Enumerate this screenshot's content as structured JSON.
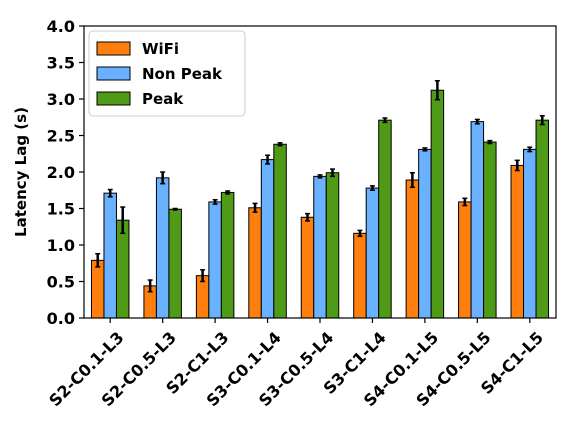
{
  "chart_data": {
    "type": "bar",
    "title": "",
    "xlabel": "",
    "ylabel": "Latency Lag (s)",
    "ylim": [
      0,
      4
    ],
    "yticks": [
      "0.0",
      "0.5",
      "1.0",
      "1.5",
      "2.0",
      "2.5",
      "3.0",
      "3.5",
      "4.0"
    ],
    "grid": false,
    "legend_position": "top-left",
    "categories": [
      "S2-C0.1-L3",
      "S2-C0.5-L3",
      "S2-C1-L3",
      "S3-C0.1-L4",
      "S3-C0.5-L4",
      "S3-C1-L4",
      "S4-C0.1-L5",
      "S4-C0.5-L5",
      "S4-C1-L5"
    ],
    "series": [
      {
        "name": "WiFi",
        "color": "#ff7f0e",
        "values": [
          0.79,
          0.44,
          0.58,
          1.51,
          1.38,
          1.16,
          1.89,
          1.59,
          2.09
        ],
        "errors": [
          0.09,
          0.08,
          0.08,
          0.06,
          0.05,
          0.04,
          0.1,
          0.05,
          0.07
        ]
      },
      {
        "name": "Non Peak",
        "color": "#6ab2ff",
        "values": [
          1.71,
          1.92,
          1.59,
          2.17,
          1.94,
          1.78,
          2.31,
          2.69,
          2.31
        ]
      },
      {
        "name": "Peak",
        "color": "#4f9a16",
        "values": [
          1.34,
          1.49,
          1.72,
          2.38,
          1.99,
          2.71,
          3.12,
          2.41,
          2.71
        ]
      }
    ]
  },
  "error_bars_nonpeak": [
    0.05,
    0.08,
    0.03,
    0.06,
    0.02,
    0.03,
    0.02,
    0.03,
    0.03
  ],
  "error_bars_peak": [
    0.18,
    0.01,
    0.02,
    0.02,
    0.05,
    0.03,
    0.13,
    0.02,
    0.06
  ]
}
